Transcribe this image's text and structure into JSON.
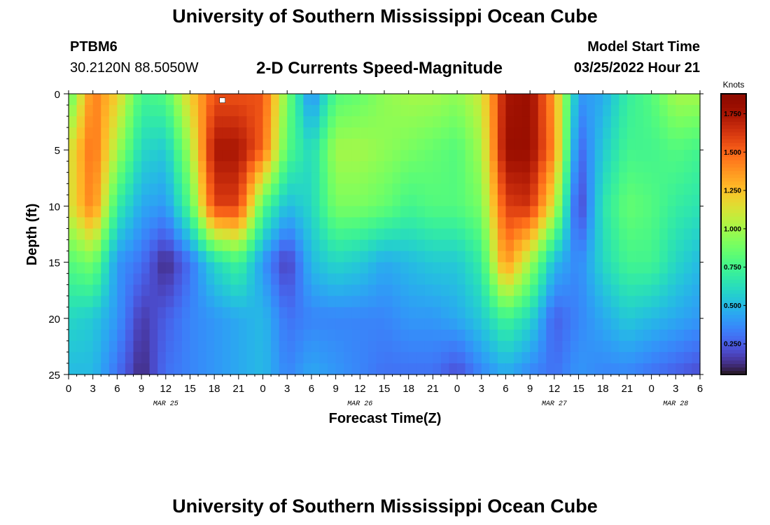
{
  "header": {
    "title": "University of Southern Mississippi Ocean Cube",
    "station_id": "PTBM6",
    "station_coords": "30.2120N  88.5050W",
    "model_label": "Model Start Time",
    "model_time": "03/25/2022 Hour 21"
  },
  "footer": {
    "title": "University of Southern Mississippi Ocean Cube"
  },
  "chart_data": {
    "type": "heatmap",
    "title": "2-D Currents Speed-Magnitude",
    "xlabel": "Forecast Time(Z)",
    "ylabel": "Depth (ft)",
    "x_range_hours": [
      0,
      78
    ],
    "x_ticks_hours": [
      0,
      3,
      6,
      9,
      12,
      15,
      18,
      21,
      24,
      27,
      30,
      33,
      36,
      39,
      42,
      45,
      48,
      51,
      54,
      57,
      60,
      63,
      66,
      69,
      72,
      75,
      78
    ],
    "x_tick_labels": [
      "0",
      "3",
      "6",
      "9",
      "12",
      "15",
      "18",
      "21",
      "0",
      "3",
      "6",
      "9",
      "12",
      "15",
      "18",
      "21",
      "0",
      "3",
      "6",
      "9",
      "12",
      "15",
      "18",
      "21",
      "0",
      "3",
      "6"
    ],
    "date_labels": [
      {
        "hour": 12,
        "label": "MAR 25"
      },
      {
        "hour": 36,
        "label": "MAR 26"
      },
      {
        "hour": 60,
        "label": "MAR 27"
      },
      {
        "hour": 75,
        "label": "MAR 28"
      }
    ],
    "y_range": [
      0,
      25
    ],
    "y_ticks": [
      0,
      5,
      10,
      15,
      20,
      25
    ],
    "y_inverted": true,
    "colorbar": {
      "label": "Knots",
      "min": 0.05,
      "max": 1.88,
      "ticks": [
        0.25,
        0.5,
        0.75,
        1.0,
        1.25,
        1.5,
        1.75
      ],
      "tick_labels": [
        "0.250",
        "0.500",
        "0.750",
        "1.000",
        "1.250",
        "1.500",
        "1.750"
      ],
      "colormap": "turbo"
    },
    "grid": false,
    "depths_ft": [
      0,
      5,
      10,
      15,
      20,
      25
    ],
    "time_hours": [
      0,
      3,
      6,
      9,
      12,
      15,
      18,
      21,
      24,
      27,
      30,
      33,
      36,
      39,
      42,
      45,
      48,
      51,
      54,
      57,
      60,
      63,
      66,
      69,
      72,
      75,
      78
    ],
    "speed_knots": [
      [
        0.8,
        1.45,
        1.2,
        0.75,
        0.8,
        1.2,
        1.55,
        1.55,
        1.55,
        0.9,
        0.35,
        0.8,
        0.85,
        0.95,
        1.0,
        1.0,
        0.95,
        1.1,
        1.75,
        1.8,
        1.35,
        0.4,
        0.45,
        0.7,
        0.8,
        1.0,
        1.0
      ],
      [
        1.1,
        1.5,
        1.0,
        0.6,
        0.55,
        1.0,
        1.75,
        1.75,
        1.5,
        0.8,
        0.6,
        1.0,
        1.0,
        0.95,
        0.9,
        0.85,
        0.8,
        1.0,
        1.8,
        1.8,
        1.4,
        0.25,
        0.55,
        0.75,
        0.75,
        0.8,
        0.75
      ],
      [
        1.1,
        1.45,
        0.7,
        0.45,
        0.4,
        0.8,
        1.6,
        1.6,
        0.8,
        0.5,
        0.6,
        0.9,
        0.9,
        0.85,
        0.75,
        0.8,
        0.8,
        0.9,
        1.6,
        1.65,
        1.1,
        0.15,
        0.65,
        0.85,
        0.8,
        0.7,
        0.65
      ],
      [
        0.8,
        0.9,
        0.4,
        0.3,
        0.1,
        0.3,
        0.6,
        0.75,
        0.4,
        0.15,
        0.5,
        0.6,
        0.55,
        0.45,
        0.5,
        0.55,
        0.55,
        0.7,
        1.4,
        1.0,
        0.5,
        0.35,
        0.6,
        0.75,
        0.75,
        0.6,
        0.5
      ],
      [
        0.6,
        0.55,
        0.4,
        0.15,
        0.25,
        0.35,
        0.4,
        0.45,
        0.5,
        0.3,
        0.35,
        0.35,
        0.35,
        0.35,
        0.4,
        0.4,
        0.45,
        0.55,
        0.75,
        0.6,
        0.25,
        0.35,
        0.45,
        0.55,
        0.5,
        0.45,
        0.4
      ],
      [
        0.5,
        0.5,
        0.3,
        0.1,
        0.3,
        0.35,
        0.4,
        0.45,
        0.5,
        0.35,
        0.45,
        0.4,
        0.35,
        0.3,
        0.3,
        0.3,
        0.2,
        0.35,
        0.45,
        0.35,
        0.3,
        0.4,
        0.35,
        0.35,
        0.3,
        0.25,
        0.2
      ]
    ],
    "marker": {
      "hour": 19,
      "depth_ft": 0.3
    }
  }
}
